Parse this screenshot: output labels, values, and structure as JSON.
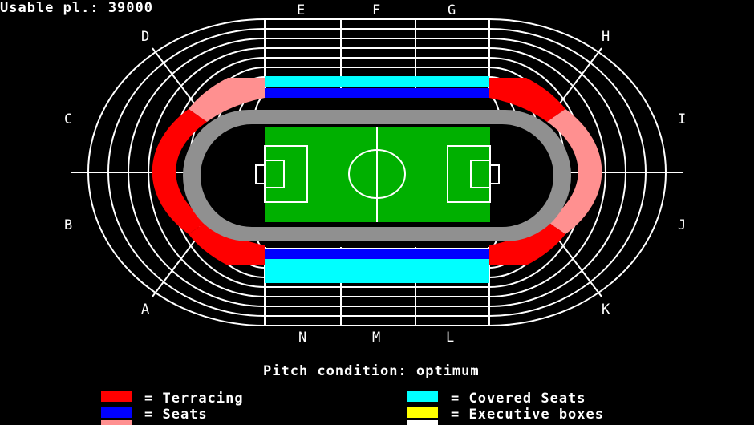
{
  "header": {
    "usable_places": "Usable pl.: 39000"
  },
  "sectors": {
    "top": [
      "E",
      "F",
      "G"
    ],
    "bottom": [
      "N",
      "M",
      "L"
    ],
    "left": [
      "D",
      "C",
      "B",
      "A"
    ],
    "right": [
      "H",
      "I",
      "J",
      "K"
    ]
  },
  "status": {
    "pitch_condition": "Pitch condition: optimum"
  },
  "legend": [
    {
      "label": "= Terracing",
      "color": "#ff0000"
    },
    {
      "label": "= Seats",
      "color": "#0000ff"
    },
    {
      "label": "= Covered Seats",
      "color": "#00ffff"
    },
    {
      "label": "= Executive boxes",
      "color": "#ffff00"
    }
  ],
  "colors": {
    "pitch": "#00b000",
    "track": "#909090",
    "terracing_light": "#ff9090",
    "terracing": "#ff0000",
    "seats": "#0000ff",
    "covered": "#00ffff",
    "lines": "#ffffff"
  }
}
